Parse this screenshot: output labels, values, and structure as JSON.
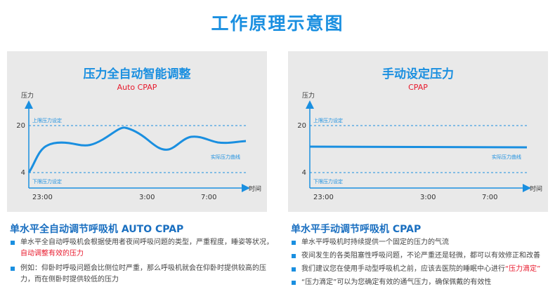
{
  "page_title": "工作原理示意图",
  "left_panel": {
    "title": "压力全自动智能调整",
    "subtitle": "Auto CPAP",
    "y_axis_label": "压力",
    "x_axis_label": "时间",
    "upper_limit_label": "上限压力设定",
    "lower_limit_label": "下限压力设定",
    "curve_label": "实际压力曲线",
    "y_ticks": [
      "20",
      "4"
    ],
    "x_ticks": [
      "23:00",
      "3:00",
      "7:00"
    ]
  },
  "right_panel": {
    "title": "手动设定压力",
    "subtitle": "CPAP",
    "y_axis_label": "压力",
    "x_axis_label": "时间",
    "upper_limit_label": "上限压力设定",
    "lower_limit_label": "下限压力设定",
    "curve_label": "实际压力曲线",
    "y_ticks": [
      "20",
      "4"
    ],
    "x_ticks": [
      "23:00",
      "3:00",
      "7:00"
    ]
  },
  "left_text": {
    "heading": "单水平全自动调节呼吸机 AUTO CPAP",
    "bullet1_part1": "单水平全自动呼吸机会根据使用者夜间呼吸问题的类型，严重程度，睡姿等状况，",
    "bullet1_highlight": "自动调整有效的压力",
    "bullet2": "例如：仰卧时呼吸问题会比侧位时严重，那么呼吸机就会在仰卧时提供较高的压力，而在侧卧时提供较低的压力"
  },
  "right_text": {
    "heading": "单水平手动调节呼吸机 CPAP",
    "bullet1": "单水平呼吸机时持续提供一个固定的压力的气流",
    "bullet2": "夜间发生的各类阻塞性呼吸问题，不论严重还是轻微，都可以有效修正和改善",
    "bullet3_part1": "我们建议您在使用手动型呼吸机之前，应该去医院的睡眠中心进行",
    "bullet3_highlight": "“压力滴定”",
    "bullet4": "“压力滴定”可以为您确定有效的通气压力，确保佩戴的有效性"
  },
  "colors": {
    "accent": "#1a8fe0",
    "highlight": "#e8192c",
    "panel_bg": "#e9e9e9"
  }
}
